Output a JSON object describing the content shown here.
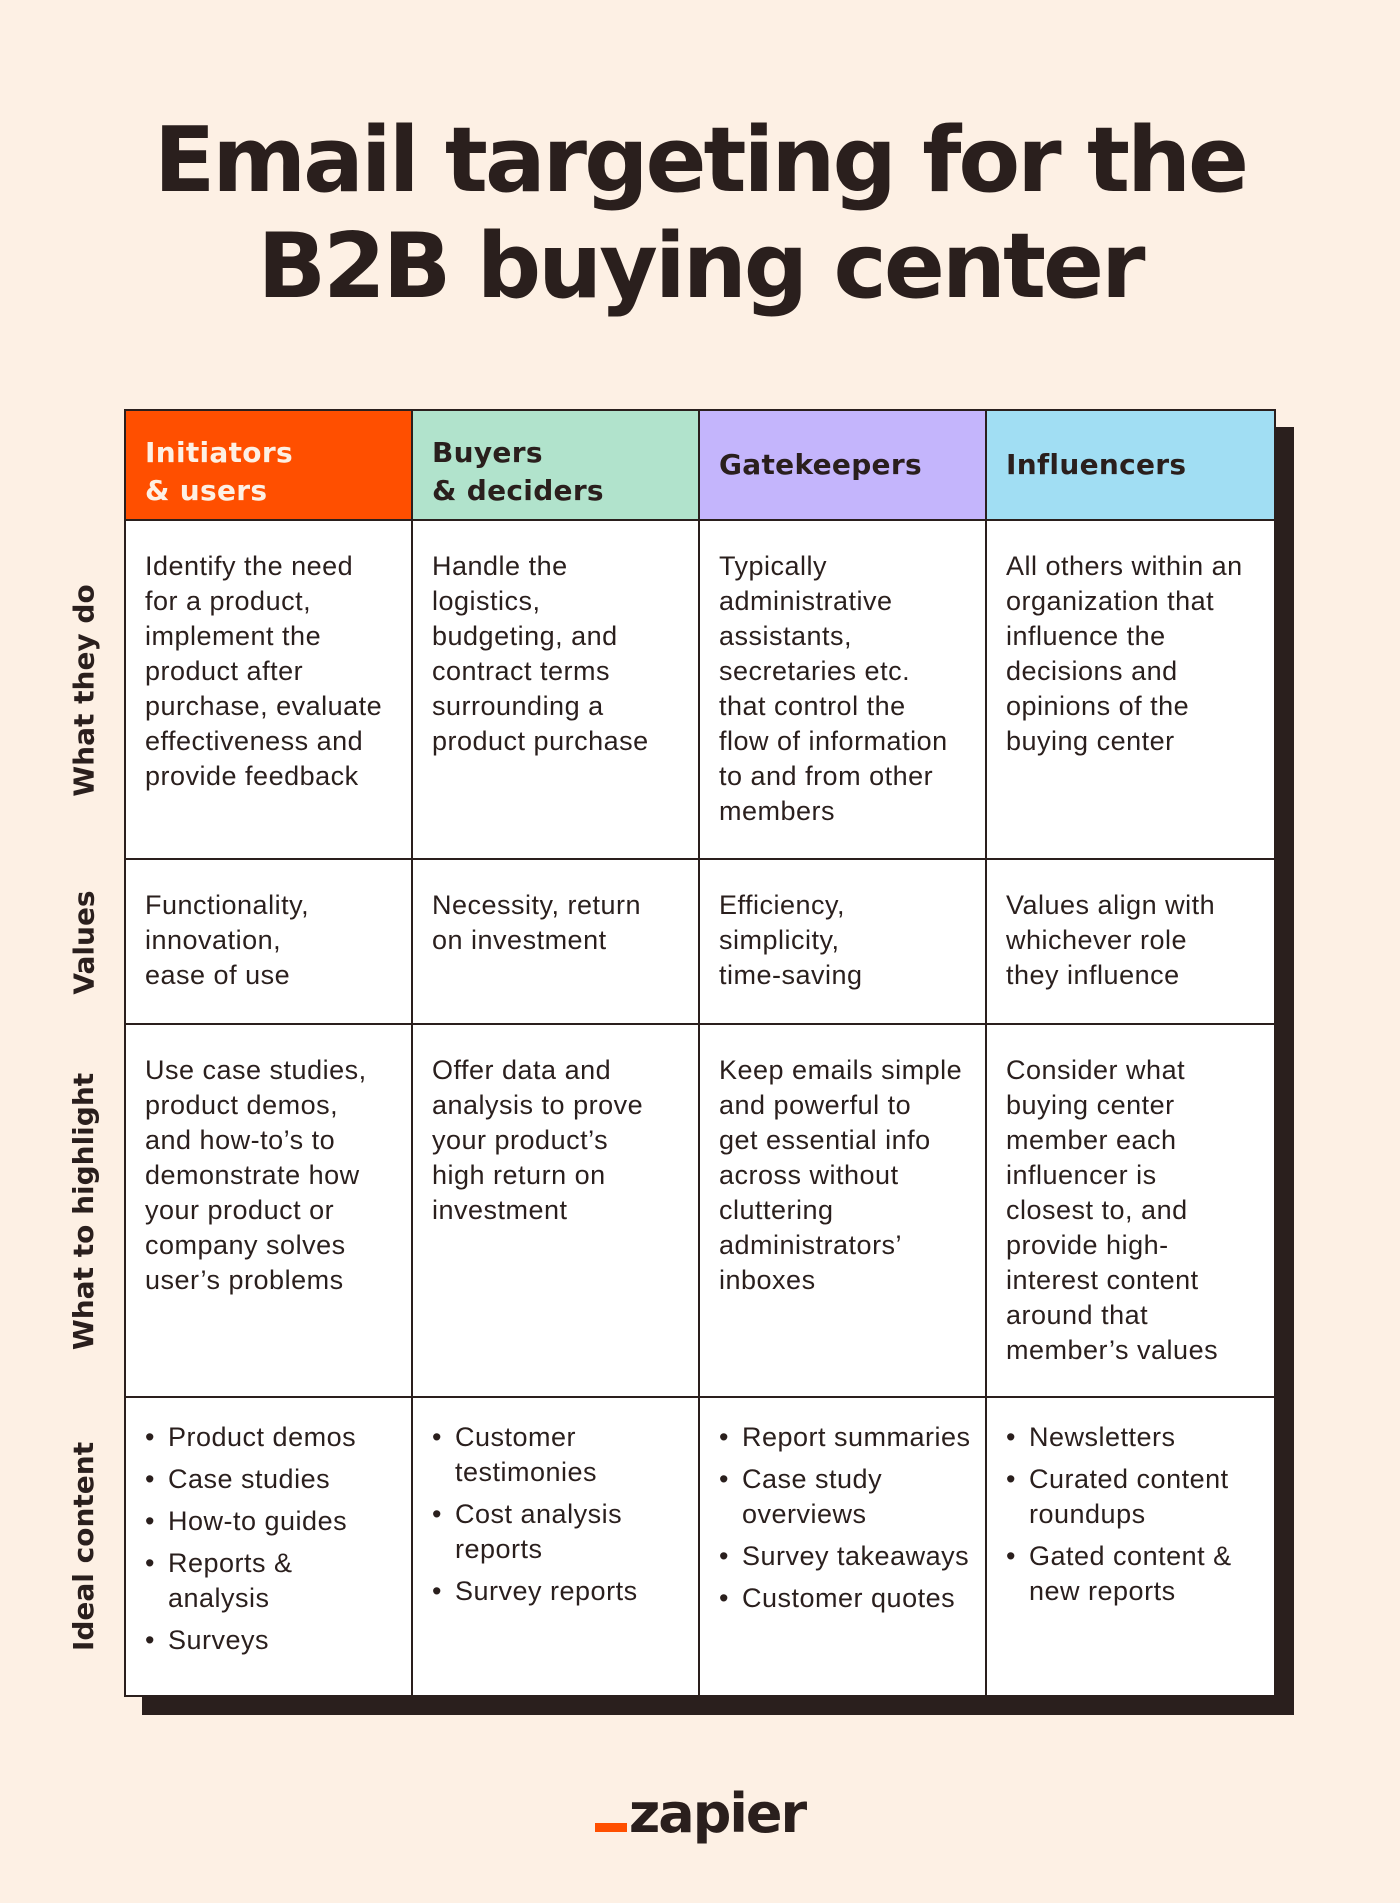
{
  "title": {
    "line1": "Email targeting for the",
    "line2": "B2B buying center"
  },
  "columns": [
    {
      "line1": "Initiators",
      "line2": "& users",
      "color": "#ff4f00"
    },
    {
      "line1": "Buyers",
      "line2": "& deciders",
      "color": "#b1e3cc"
    },
    {
      "line1": "Gatekeepers",
      "line2": "",
      "color": "#c4b5fc"
    },
    {
      "line1": "Influencers",
      "line2": "",
      "color": "#a1def3"
    }
  ],
  "row_labels": {
    "what_they_do": "What they do",
    "values": "Values",
    "what_to_highlight": "What to highlight",
    "ideal_content": "Ideal content"
  },
  "what_they_do": [
    [
      "Identify the need",
      "for a product,",
      "implement the",
      "product after",
      "purchase, evaluate",
      "effectiveness and",
      "provide feedback"
    ],
    [
      "Handle the",
      "logistics,",
      "budgeting, and",
      "contract terms",
      "surrounding a",
      "product purchase"
    ],
    [
      "Typically",
      "administrative",
      "assistants,",
      "secretaries etc.",
      "that control the",
      "flow of information",
      "to and from other",
      "members"
    ],
    [
      "All others within an",
      "organization that",
      "influence the",
      "decisions and",
      "opinions of the",
      "buying center"
    ]
  ],
  "values": [
    [
      "Functionality,",
      "innovation,",
      "ease of use"
    ],
    [
      "Necessity, return",
      "on investment"
    ],
    [
      "Efficiency,",
      "simplicity,",
      "time-saving"
    ],
    [
      "Values align with",
      "whichever role",
      "they influence"
    ]
  ],
  "what_to_highlight": [
    [
      "Use case studies,",
      "product demos,",
      "and how-to’s to",
      "demonstrate how",
      "your product or",
      "company solves",
      "user’s problems"
    ],
    [
      "Offer data and",
      "analysis to prove",
      "your product’s",
      "high return on",
      "investment"
    ],
    [
      "Keep emails simple",
      "and powerful to",
      "get essential info",
      "across without",
      "cluttering",
      "administrators’",
      "inboxes"
    ],
    [
      "Consider what",
      "buying center",
      "member each",
      "influencer is",
      "closest to, and",
      "provide high-",
      "interest content",
      "around that",
      "member’s values"
    ]
  ],
  "ideal_content": [
    [
      [
        "Product demos"
      ],
      [
        "Case studies"
      ],
      [
        "How-to guides"
      ],
      [
        "Reports &",
        "analysis"
      ],
      [
        "Surveys"
      ]
    ],
    [
      [
        "Customer",
        "testimonies"
      ],
      [
        "Cost analysis",
        "reports"
      ],
      [
        "Survey reports"
      ]
    ],
    [
      [
        "Report summaries"
      ],
      [
        "Case study",
        "overviews"
      ],
      [
        "Survey takeaways"
      ],
      [
        "Customer quotes"
      ]
    ],
    [
      [
        "Newsletters"
      ],
      [
        "Curated content",
        "roundups"
      ],
      [
        "Gated content &",
        "new reports"
      ]
    ]
  ],
  "logo": {
    "text": "zapier",
    "accent_color": "#ff4f00"
  }
}
